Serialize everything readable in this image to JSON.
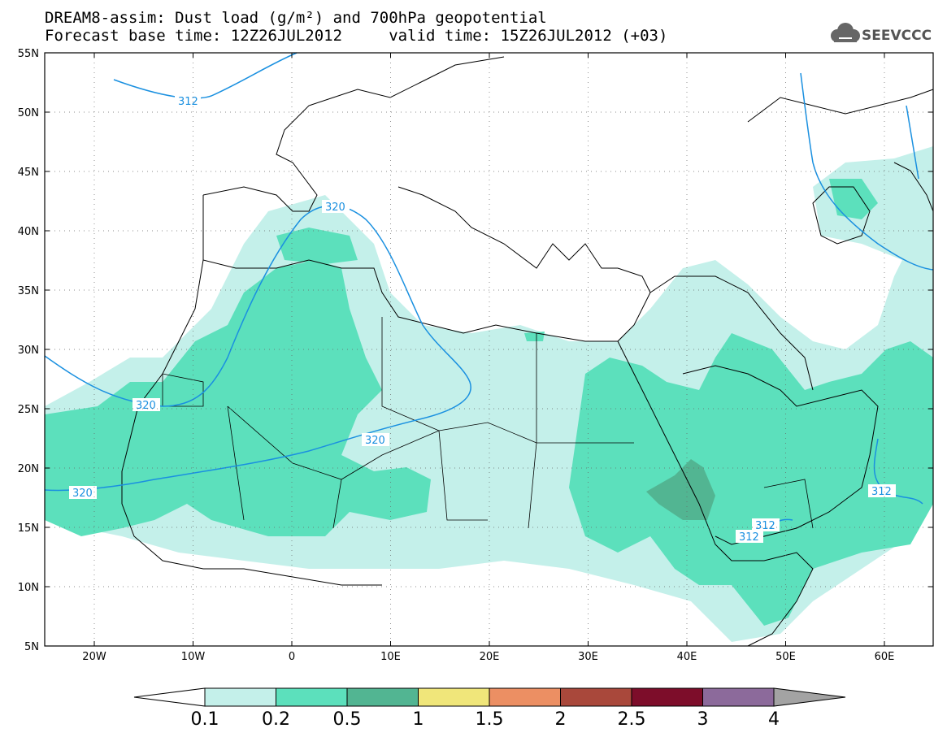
{
  "header": {
    "title_line1": "DREAM8-assim: Dust load (g/m²) and 700hPa geopotential",
    "title_line2": "Forecast base time: 12Z26JUL2012     valid time: 15Z26JUL2012 (+03)"
  },
  "logo": {
    "text": "SEEVCCC",
    "icon": "cloud-logo-icon"
  },
  "colors": {
    "bin_01_02": "#c4f0ea",
    "bin_02_05": "#5ce0bc",
    "bin_05_1": "#52b592",
    "bin_1_15": "#f0e67a",
    "bin_15_2": "#ec8f63",
    "bin_2_25": "#a9483b",
    "bin_25_3": "#7d0d2a",
    "bin_3_4": "#8c6a9b",
    "bin_over4": "#a3a3a3",
    "contour": "#1a90e0"
  },
  "axes": {
    "lon_labels": [
      "20W",
      "10W",
      "0",
      "10E",
      "20E",
      "30E",
      "40E",
      "50E",
      "60E"
    ],
    "lat_labels": [
      "55N",
      "50N",
      "45N",
      "40N",
      "35N",
      "30N",
      "25N",
      "20N",
      "15N",
      "10N",
      "5N"
    ]
  },
  "contour_labels": [
    "312",
    "320",
    "320",
    "320",
    "320",
    "312",
    "312",
    "312"
  ],
  "colorbar": {
    "levels": [
      "0.1",
      "0.2",
      "0.5",
      "1",
      "1.5",
      "2",
      "2.5",
      "3",
      "4"
    ]
  }
}
